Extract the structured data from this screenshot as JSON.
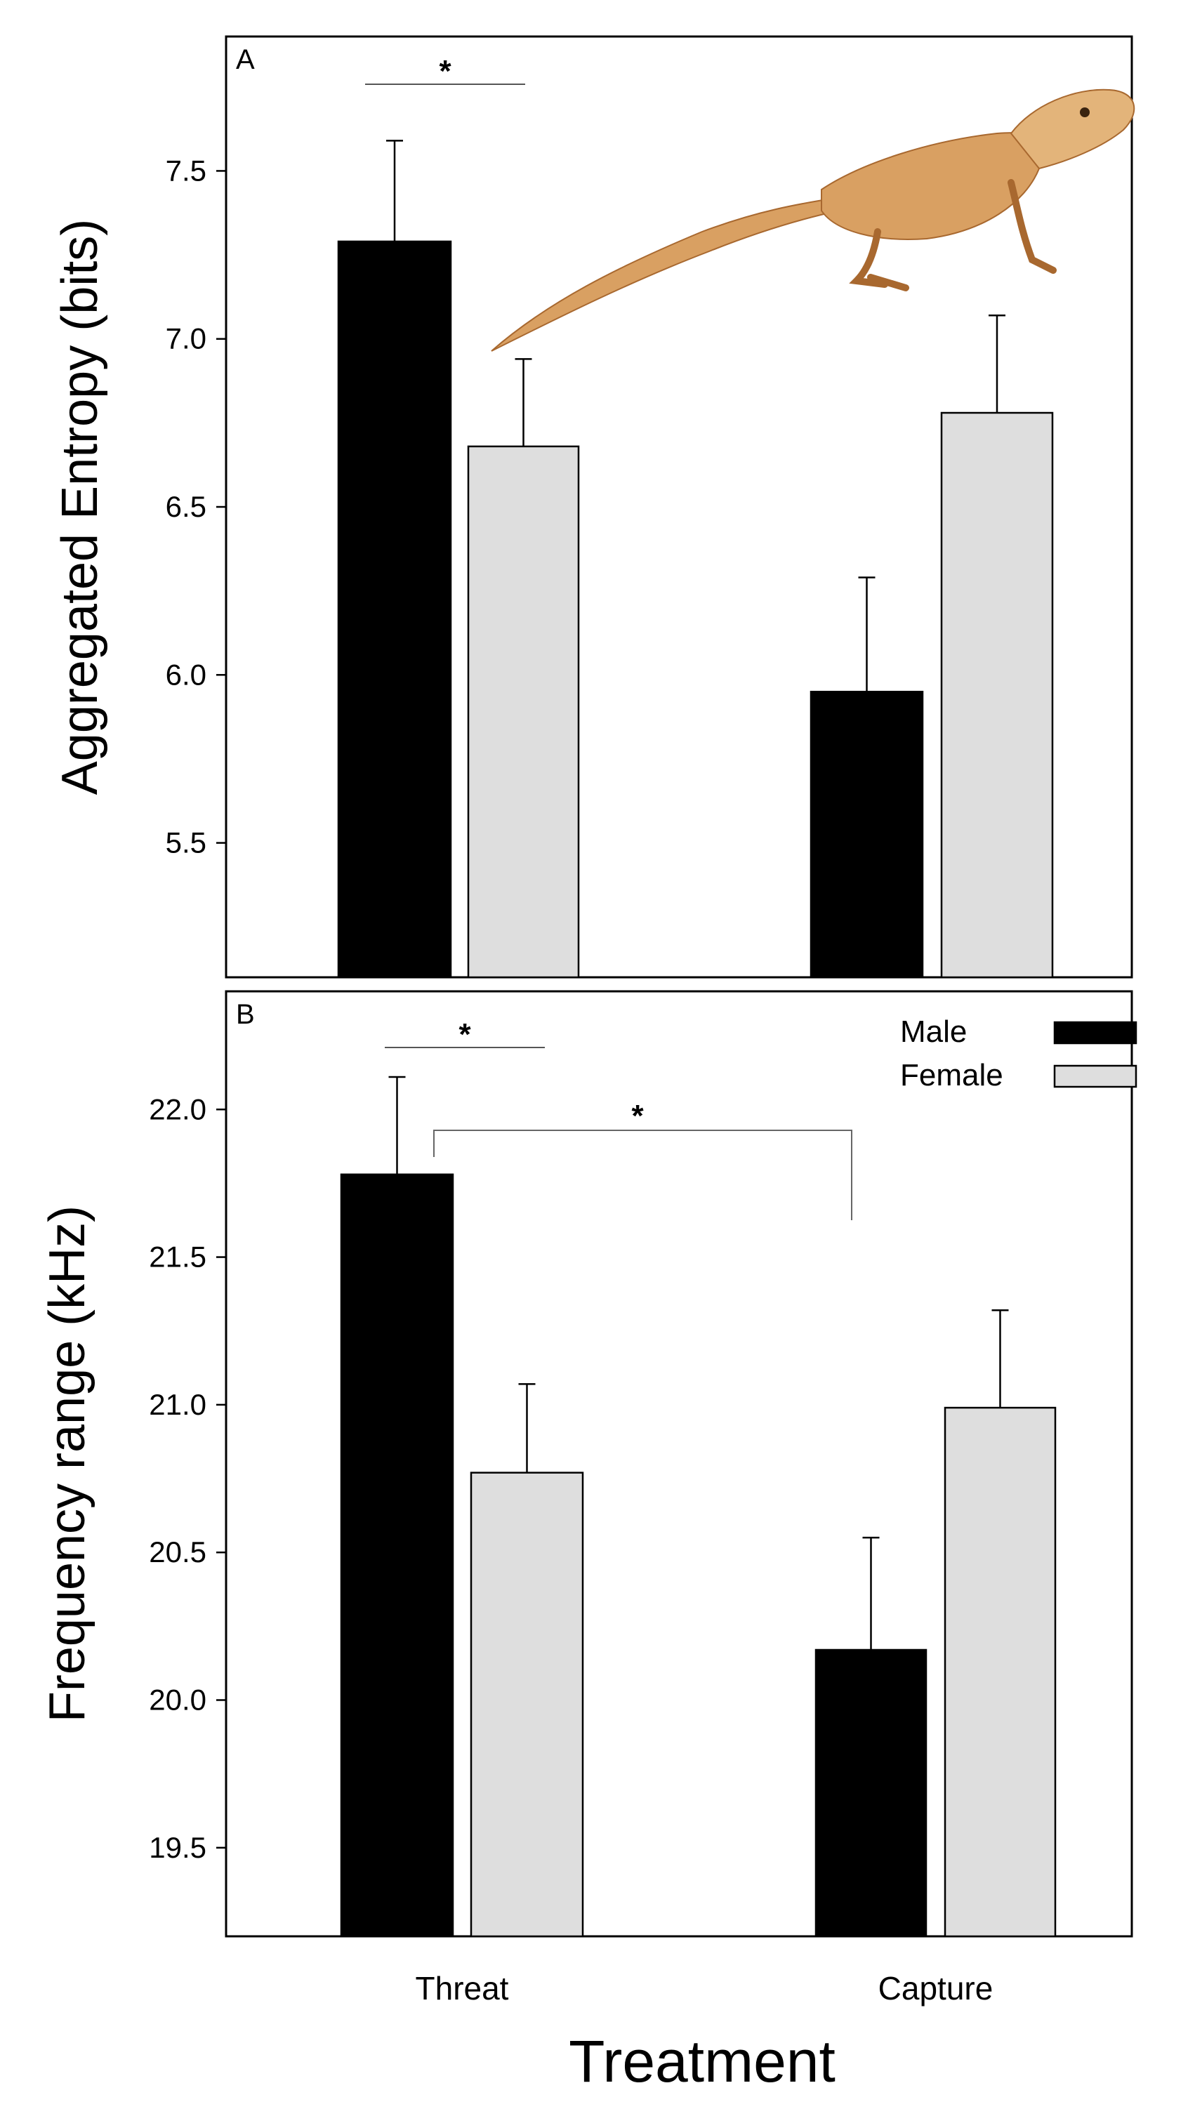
{
  "colors": {
    "male": "#000000",
    "female": "#dedede",
    "axis": "#000000",
    "lizard_body": "#d9a062",
    "lizard_dark": "#a8682f"
  },
  "chart_data": [
    {
      "type": "bar",
      "panel": "A",
      "ylabel": "Aggregated Entropy (bits)",
      "xlabel": "",
      "ylim": [
        5.1,
        7.9
      ],
      "yticks": [
        5.5,
        6.0,
        6.5,
        7.0,
        7.5
      ],
      "ytick_labels": [
        "5.5",
        "6.0",
        "6.5",
        "7.0",
        "7.5"
      ],
      "categories": [
        "Threat",
        "Capture"
      ],
      "series": [
        {
          "name": "Male",
          "values": [
            7.29,
            5.95
          ],
          "errors": [
            0.3,
            0.34
          ]
        },
        {
          "name": "Female",
          "values": [
            6.68,
            6.78
          ],
          "errors": [
            0.26,
            0.29
          ]
        }
      ],
      "annotations": [
        {
          "label": "*",
          "type": "within-group",
          "group": "Threat"
        }
      ],
      "image": "lizard-photo"
    },
    {
      "type": "bar",
      "panel": "B",
      "ylabel": "Frequency range (kHz)",
      "xlabel": "Treatment",
      "ylim": [
        19.2,
        22.4
      ],
      "yticks": [
        19.5,
        20.0,
        20.5,
        21.0,
        21.5,
        22.0
      ],
      "ytick_labels": [
        "19.5",
        "20.0",
        "20.5",
        "21.0",
        "21.5",
        "22.0"
      ],
      "categories": [
        "Threat",
        "Capture"
      ],
      "series": [
        {
          "name": "Male",
          "values": [
            21.78,
            20.17
          ],
          "errors": [
            0.33,
            0.38
          ]
        },
        {
          "name": "Female",
          "values": [
            20.77,
            20.99
          ],
          "errors": [
            0.3,
            0.33
          ]
        }
      ],
      "legend": {
        "placement": "top-right",
        "entries": [
          "Male",
          "Female"
        ]
      },
      "annotations": [
        {
          "label": "*",
          "type": "within-group",
          "group": "Threat"
        },
        {
          "label": "*",
          "type": "between-groups",
          "series": "Male"
        }
      ]
    }
  ]
}
